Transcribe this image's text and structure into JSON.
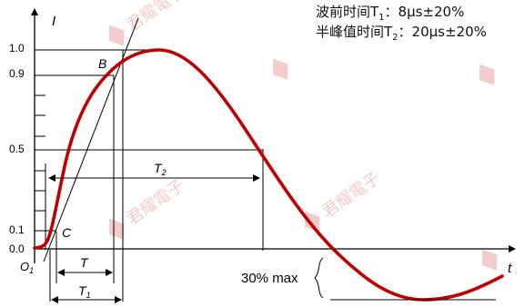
{
  "colors": {
    "waveform": "#c00000",
    "axes": "#000000",
    "watermark": "#e68c8c"
  },
  "axis": {
    "y_label": "I",
    "x_label": "t",
    "origin_label": "O1"
  },
  "y_ticks": [
    "1.0",
    "0.9",
    "0.5",
    "0.1",
    "0.0"
  ],
  "points": {
    "b_label": "B",
    "c_label": "C"
  },
  "dimensions": {
    "t_label": "T",
    "t1_label": "T1",
    "t2_label": "T2",
    "tail_label": "30% max"
  },
  "notes": {
    "line1_prefix": "波前时间T",
    "line1_sub": "1",
    "line1_suffix": "：8μs±20%",
    "line2_prefix": "半峰值时间T",
    "line2_sub": "2",
    "line2_suffix": "：20μs±20%"
  },
  "watermark": {
    "text": "君耀電子",
    "icon_name": "brand-logo-icon"
  }
}
